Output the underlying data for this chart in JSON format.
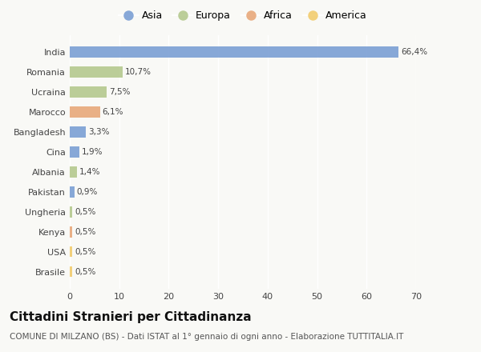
{
  "categories": [
    "India",
    "Romania",
    "Ucraina",
    "Marocco",
    "Bangladesh",
    "Cina",
    "Albania",
    "Pakistan",
    "Ungheria",
    "Kenya",
    "USA",
    "Brasile"
  ],
  "values": [
    66.4,
    10.7,
    7.5,
    6.1,
    3.3,
    1.9,
    1.4,
    0.9,
    0.5,
    0.5,
    0.5,
    0.5
  ],
  "labels": [
    "66,4%",
    "10,7%",
    "7,5%",
    "6,1%",
    "3,3%",
    "1,9%",
    "1,4%",
    "0,9%",
    "0,5%",
    "0,5%",
    "0,5%",
    "0,5%"
  ],
  "continents": [
    "Asia",
    "Europa",
    "Europa",
    "Africa",
    "Asia",
    "Asia",
    "Europa",
    "Asia",
    "Europa",
    "Africa",
    "America",
    "America"
  ],
  "colors": {
    "Asia": "#7b9fd4",
    "Europa": "#b5c98e",
    "Africa": "#e8a87a",
    "America": "#f2cc6e"
  },
  "legend_order": [
    "Asia",
    "Europa",
    "Africa",
    "America"
  ],
  "xlim": [
    0,
    70
  ],
  "xticks": [
    0,
    10,
    20,
    30,
    40,
    50,
    60,
    70
  ],
  "title": "Cittadini Stranieri per Cittadinanza",
  "subtitle": "COMUNE DI MILZANO (BS) - Dati ISTAT al 1° gennaio di ogni anno - Elaborazione TUTTITALIA.IT",
  "background_color": "#f9f9f6",
  "bar_height": 0.55,
  "title_fontsize": 11,
  "subtitle_fontsize": 7.5,
  "label_fontsize": 7.5,
  "ytick_fontsize": 8,
  "xtick_fontsize": 8,
  "legend_fontsize": 9
}
